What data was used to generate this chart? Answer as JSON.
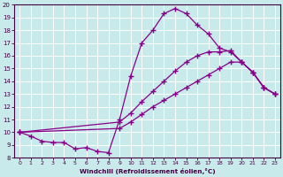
{
  "xlabel": "Windchill (Refroidissement éolien,°C)",
  "xlim": [
    -0.5,
    23.5
  ],
  "ylim": [
    8,
    20
  ],
  "xticks": [
    0,
    1,
    2,
    3,
    4,
    5,
    6,
    7,
    8,
    9,
    10,
    11,
    12,
    13,
    14,
    15,
    16,
    17,
    18,
    19,
    20,
    21,
    22,
    23
  ],
  "yticks": [
    8,
    9,
    10,
    11,
    12,
    13,
    14,
    15,
    16,
    17,
    18,
    19,
    20
  ],
  "bg_color": "#c8eaea",
  "line_color": "#880088",
  "line1_x": [
    0,
    1,
    2,
    3,
    4,
    5,
    6,
    7,
    8,
    9,
    10,
    11,
    12,
    13,
    14,
    15,
    16,
    17,
    18,
    19,
    20,
    21,
    22,
    23
  ],
  "line1_y": [
    10.0,
    9.7,
    9.3,
    9.2,
    9.2,
    8.7,
    8.8,
    8.5,
    8.4,
    11.0,
    14.4,
    17.0,
    18.0,
    19.3,
    19.7,
    19.3,
    18.4,
    17.7,
    16.6,
    16.3,
    15.5,
    14.7,
    13.5,
    13.0
  ],
  "line2_x": [
    0,
    9,
    10,
    11,
    12,
    13,
    14,
    15,
    16,
    17,
    18,
    19,
    20,
    21,
    22,
    23
  ],
  "line2_y": [
    10.0,
    10.8,
    11.5,
    12.4,
    13.2,
    14.0,
    14.8,
    15.5,
    16.0,
    16.3,
    16.3,
    16.4,
    15.5,
    14.7,
    13.5,
    13.0
  ],
  "line3_x": [
    0,
    9,
    10,
    11,
    12,
    13,
    14,
    15,
    16,
    17,
    18,
    19,
    20,
    21,
    22,
    23
  ],
  "line3_y": [
    10.0,
    10.3,
    10.8,
    11.4,
    12.0,
    12.5,
    13.0,
    13.5,
    14.0,
    14.5,
    15.0,
    15.5,
    15.5,
    14.7,
    13.5,
    13.0
  ]
}
